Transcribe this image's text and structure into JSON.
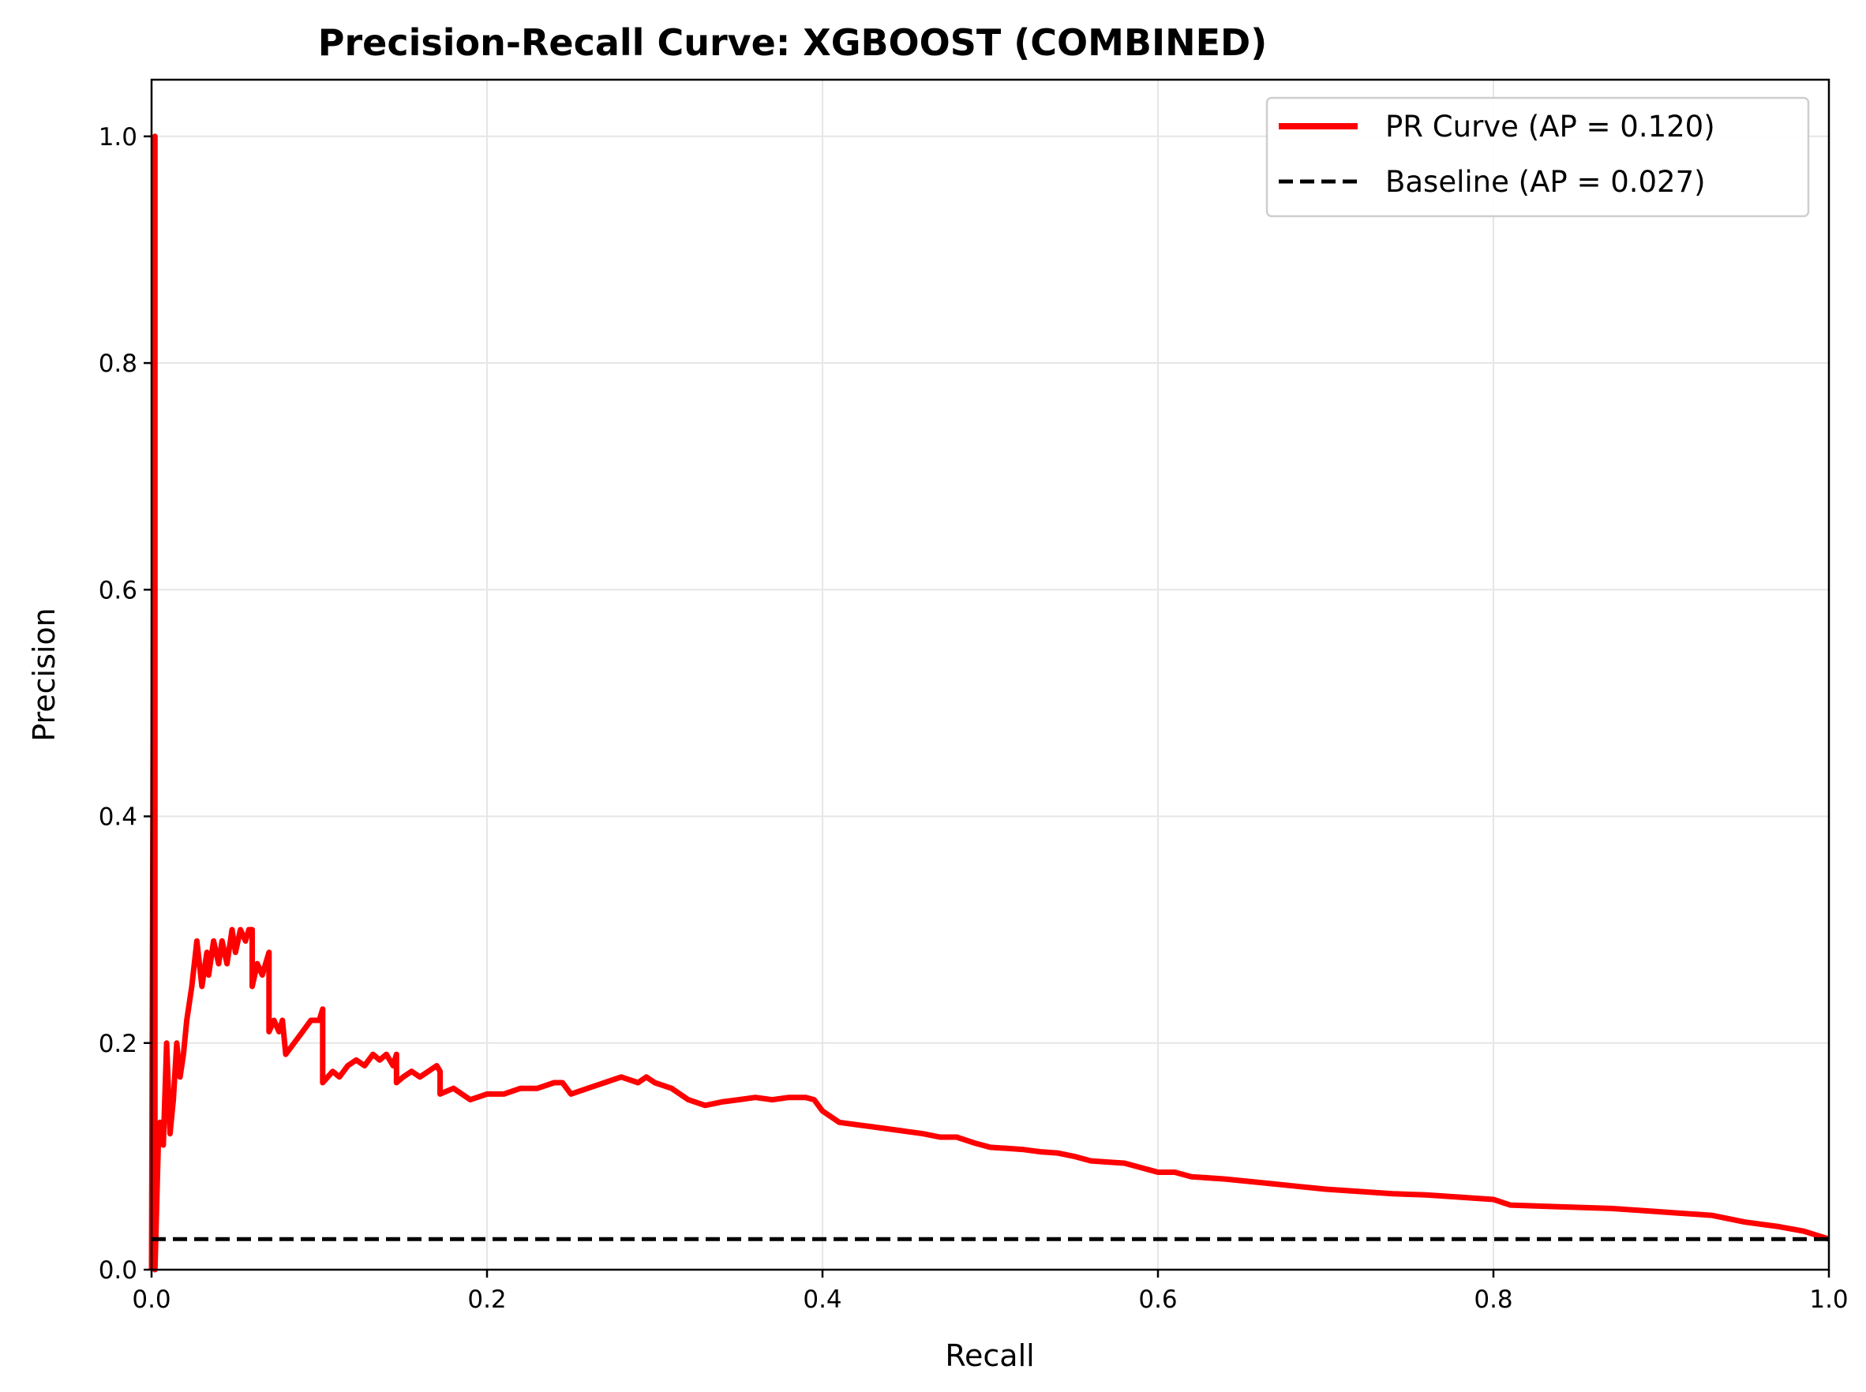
{
  "chart_data": {
    "type": "line",
    "title": "Precision-Recall Curve: XGBOOST (COMBINED)",
    "xlabel": "Recall",
    "ylabel": "Precision",
    "xlim": [
      0.0,
      1.0
    ],
    "ylim": [
      0.0,
      1.05
    ],
    "xticks": [
      "0.0",
      "0.2",
      "0.4",
      "0.6",
      "0.8",
      "1.0"
    ],
    "yticks": [
      "0.0",
      "0.2",
      "0.4",
      "0.6",
      "0.8",
      "1.0"
    ],
    "grid": true,
    "legend_position": "top-right",
    "series": [
      {
        "name": "PR Curve (AP = 0.120)",
        "color": "#ff0000",
        "style": "solid",
        "x": [
          0.0,
          0.002,
          0.002,
          0.004,
          0.005,
          0.007,
          0.009,
          0.011,
          0.013,
          0.015,
          0.017,
          0.019,
          0.021,
          0.024,
          0.027,
          0.03,
          0.033,
          0.034,
          0.037,
          0.04,
          0.042,
          0.045,
          0.048,
          0.05,
          0.053,
          0.056,
          0.058,
          0.06,
          0.06,
          0.063,
          0.066,
          0.068,
          0.07,
          0.07,
          0.073,
          0.076,
          0.078,
          0.08,
          0.085,
          0.09,
          0.095,
          0.1,
          0.102,
          0.102,
          0.108,
          0.112,
          0.117,
          0.122,
          0.127,
          0.132,
          0.136,
          0.14,
          0.144,
          0.146,
          0.146,
          0.15,
          0.155,
          0.16,
          0.165,
          0.17,
          0.172,
          0.172,
          0.18,
          0.19,
          0.2,
          0.21,
          0.22,
          0.23,
          0.24,
          0.245,
          0.25,
          0.26,
          0.27,
          0.28,
          0.29,
          0.295,
          0.3,
          0.31,
          0.32,
          0.33,
          0.34,
          0.35,
          0.36,
          0.37,
          0.38,
          0.39,
          0.395,
          0.4,
          0.41,
          0.42,
          0.43,
          0.44,
          0.45,
          0.46,
          0.47,
          0.48,
          0.49,
          0.5,
          0.51,
          0.52,
          0.53,
          0.54,
          0.55,
          0.56,
          0.57,
          0.58,
          0.59,
          0.6,
          0.61,
          0.62,
          0.64,
          0.66,
          0.68,
          0.7,
          0.72,
          0.74,
          0.76,
          0.78,
          0.8,
          0.81,
          0.83,
          0.85,
          0.87,
          0.89,
          0.91,
          0.93,
          0.95,
          0.97,
          0.985,
          1.0
        ],
        "y": [
          0.0,
          1.0,
          0.0,
          0.11,
          0.13,
          0.11,
          0.2,
          0.12,
          0.15,
          0.2,
          0.17,
          0.19,
          0.22,
          0.25,
          0.29,
          0.25,
          0.28,
          0.26,
          0.29,
          0.27,
          0.29,
          0.27,
          0.3,
          0.28,
          0.3,
          0.29,
          0.3,
          0.3,
          0.25,
          0.27,
          0.26,
          0.27,
          0.28,
          0.21,
          0.22,
          0.21,
          0.22,
          0.19,
          0.2,
          0.21,
          0.22,
          0.22,
          0.23,
          0.165,
          0.175,
          0.17,
          0.18,
          0.185,
          0.18,
          0.19,
          0.185,
          0.19,
          0.18,
          0.19,
          0.165,
          0.17,
          0.175,
          0.17,
          0.175,
          0.18,
          0.175,
          0.155,
          0.16,
          0.15,
          0.155,
          0.155,
          0.16,
          0.16,
          0.165,
          0.165,
          0.155,
          0.16,
          0.165,
          0.17,
          0.165,
          0.17,
          0.165,
          0.16,
          0.15,
          0.145,
          0.148,
          0.15,
          0.152,
          0.15,
          0.152,
          0.152,
          0.15,
          0.14,
          0.13,
          0.128,
          0.126,
          0.124,
          0.122,
          0.12,
          0.117,
          0.117,
          0.112,
          0.108,
          0.107,
          0.106,
          0.104,
          0.103,
          0.1,
          0.096,
          0.095,
          0.094,
          0.09,
          0.086,
          0.086,
          0.082,
          0.08,
          0.077,
          0.074,
          0.071,
          0.069,
          0.067,
          0.066,
          0.064,
          0.062,
          0.057,
          0.056,
          0.055,
          0.054,
          0.052,
          0.05,
          0.048,
          0.042,
          0.038,
          0.034,
          0.027
        ]
      },
      {
        "name": "Baseline (AP = 0.027)",
        "color": "#000000",
        "style": "dashed",
        "x": [
          0.0,
          1.0
        ],
        "y": [
          0.027,
          0.027
        ]
      }
    ]
  }
}
